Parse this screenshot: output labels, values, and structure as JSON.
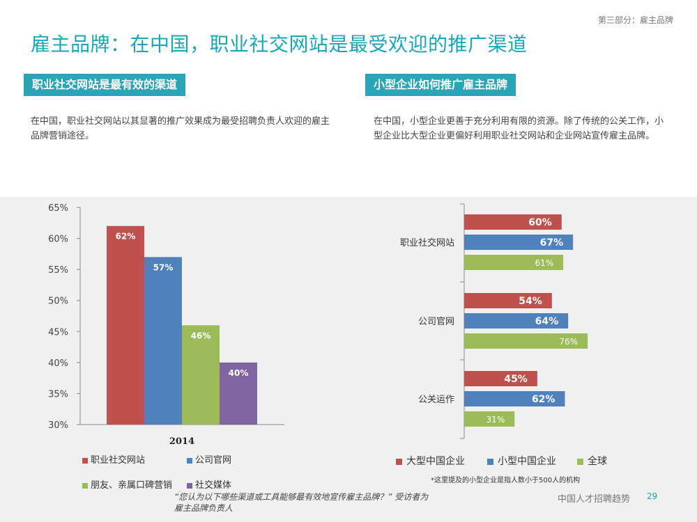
{
  "section_tag": "第三部分：雇主品牌",
  "title": "雇主品牌：在中国，职业社交网站是最受欢迎的推广渠道",
  "left": {
    "heading": "职业社交网站是最有效的渠道",
    "body": "在中国，职业社交网站以其显著的推广效果成为最受招聘负责人欢迎的雇主品牌营销途径。"
  },
  "right": {
    "heading": "小型企业如何推广雇主品牌",
    "body": "在中国，小型企业更善于充分利用有限的资源。除了传统的公关工作，小型企业比大型企业更偏好利用职业社交网站和企业网站宣传雇主品牌。"
  },
  "chart_data": [
    {
      "type": "bar",
      "categories": [
        "2014"
      ],
      "series": [
        {
          "name": "职业社交网站",
          "values": [
            62
          ],
          "color": "#c0504d"
        },
        {
          "name": "公司官网",
          "values": [
            57
          ],
          "color": "#4f81bd"
        },
        {
          "name": "朋友、亲属口碑营销",
          "values": [
            46
          ],
          "color": "#9bbb59"
        },
        {
          "name": "社交媒体",
          "values": [
            40
          ],
          "color": "#8064a2"
        }
      ],
      "ylim": [
        30,
        65
      ],
      "yticks": [
        30,
        35,
        40,
        45,
        50,
        55,
        60,
        65
      ],
      "ytick_labels": [
        "30%",
        "35%",
        "40%",
        "45%",
        "50%",
        "55%",
        "60%",
        "65%"
      ],
      "data_labels": [
        "62%",
        "57%",
        "46%",
        "40%"
      ],
      "legend_position": "bottom"
    },
    {
      "type": "bar",
      "orientation": "horizontal",
      "categories": [
        "职业社交网站",
        "公司官网",
        "公关运作"
      ],
      "series": [
        {
          "name": "大型中国企业",
          "values": [
            60,
            54,
            45
          ],
          "labels": [
            "60%",
            "54%",
            "45%"
          ],
          "color": "#c0504d"
        },
        {
          "name": "小型中国企业",
          "values": [
            67,
            64,
            62
          ],
          "labels": [
            "67%",
            "64%",
            "62%"
          ],
          "color": "#4f81bd"
        },
        {
          "name": "全球",
          "values": [
            61,
            76,
            31
          ],
          "labels": [
            "61%",
            "76%",
            "31%"
          ],
          "color": "#9bbb59"
        }
      ],
      "legend_position": "bottom"
    }
  ],
  "footnote": "*这里提及的小型企业是指人数小于500人的机构",
  "quote": "“您认为以下哪些渠道或工具能够最有效地宣传雇主品牌？”  受访者为雇主品牌负责人",
  "footer": {
    "brand": "中国人才招聘趋势",
    "page": "29"
  }
}
